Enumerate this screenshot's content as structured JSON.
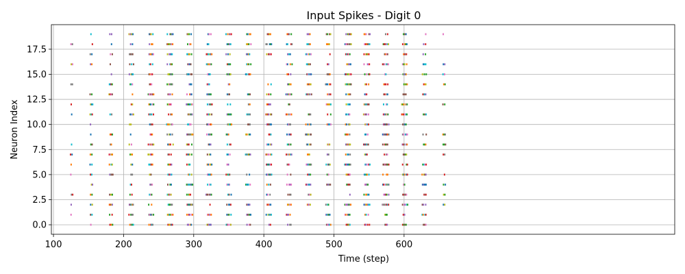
{
  "chart_data": {
    "type": "scatter",
    "title": "Input Spikes - Digit 0",
    "xlabel": "Time (step)",
    "ylabel": "Neuron Index",
    "xlim": [
      97,
      986
    ],
    "ylim": [
      -0.95,
      19.95
    ],
    "xticks": [
      100,
      200,
      300,
      400,
      500,
      600
    ],
    "yticks": [
      0.0,
      2.5,
      5.0,
      7.5,
      10.0,
      12.5,
      15.0,
      17.5
    ],
    "ytick_labels": [
      "0.0",
      "2.5",
      "5.0",
      "7.5",
      "10.0",
      "12.5",
      "15.0",
      "17.5"
    ],
    "grid": true,
    "legend": "none",
    "marker": "tiny square",
    "neurons": [
      0,
      1,
      2,
      3,
      4,
      5,
      6,
      7,
      8,
      9,
      10,
      11,
      12,
      13,
      14,
      15,
      16,
      17,
      18,
      19
    ],
    "series_colors": [
      "#1f77b4",
      "#ff7f0e",
      "#2ca02c",
      "#d62728",
      "#9467bd",
      "#8c564b",
      "#e377c2",
      "#7f7f7f",
      "#bcbd22",
      "#17becf"
    ],
    "spike_clusters": [
      {
        "center": 126,
        "width": 2,
        "density": 0.6
      },
      {
        "center": 154,
        "width": 3,
        "density": 0.8
      },
      {
        "center": 182,
        "width": 4,
        "density": 0.9
      },
      {
        "center": 211,
        "width": 5,
        "density": 1.0
      },
      {
        "center": 239,
        "width": 7,
        "density": 1.0
      },
      {
        "center": 266,
        "width": 8,
        "density": 1.0
      },
      {
        "center": 294,
        "width": 8,
        "density": 1.0
      },
      {
        "center": 322,
        "width": 8,
        "density": 0.95
      },
      {
        "center": 350,
        "width": 7,
        "density": 0.9
      },
      {
        "center": 378,
        "width": 7,
        "density": 0.85
      },
      {
        "center": 407,
        "width": 7,
        "density": 0.85
      },
      {
        "center": 436,
        "width": 7,
        "density": 0.85
      },
      {
        "center": 464,
        "width": 7,
        "density": 0.9
      },
      {
        "center": 492,
        "width": 7,
        "density": 0.9
      },
      {
        "center": 520,
        "width": 8,
        "density": 1.0
      },
      {
        "center": 547,
        "width": 8,
        "density": 1.0
      },
      {
        "center": 574,
        "width": 8,
        "density": 1.0
      },
      {
        "center": 601,
        "width": 7,
        "density": 1.0
      },
      {
        "center": 629,
        "width": 5,
        "density": 0.9
      },
      {
        "center": 657,
        "width": 3,
        "density": 0.7
      }
    ]
  }
}
